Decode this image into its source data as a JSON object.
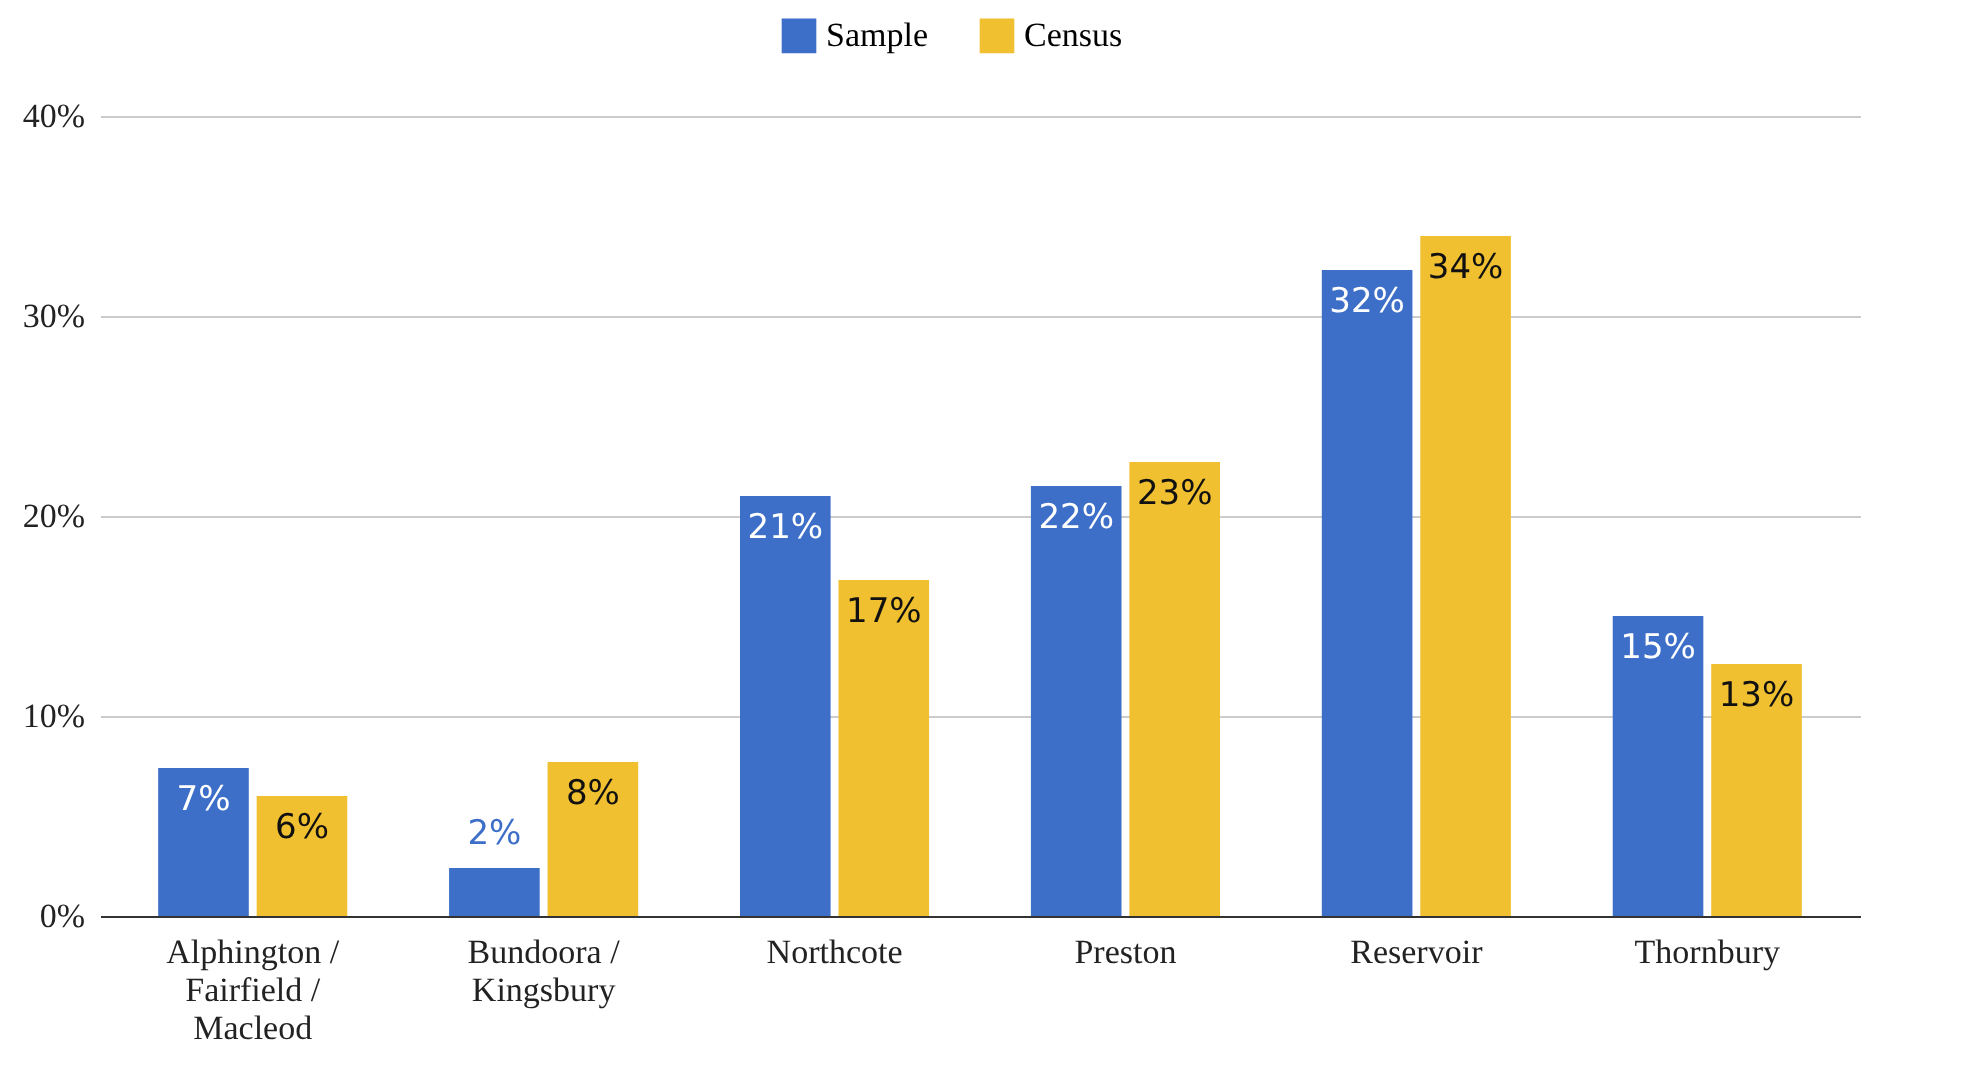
{
  "chart_data": {
    "type": "bar",
    "categories": [
      "Alphington / Fairfield / Macleod",
      "Bundoora / Kingsbury",
      "Northcote",
      "Preston",
      "Reservoir",
      "Thornbury"
    ],
    "series": [
      {
        "name": "Sample",
        "color": "#3d6fc8",
        "values": [
          7.4,
          2.4,
          21,
          21.5,
          32.3,
          15
        ],
        "value_labels": [
          "7%",
          "2%",
          "21%",
          "22%",
          "32%",
          "15%"
        ]
      },
      {
        "name": "Census",
        "color": "#f0c030",
        "values": [
          6,
          7.7,
          16.8,
          22.7,
          34,
          12.6
        ],
        "value_labels": [
          "6%",
          "8%",
          "17%",
          "23%",
          "34%",
          "13%"
        ]
      }
    ],
    "ylim": [
      0,
      40
    ],
    "yticks": [
      {
        "value": 0,
        "label": "0%"
      },
      {
        "value": 10,
        "label": "10%"
      },
      {
        "value": 20,
        "label": "20%"
      },
      {
        "value": 30,
        "label": "30%"
      },
      {
        "value": 40,
        "label": "40%"
      }
    ],
    "grid": "y",
    "legend": "top"
  }
}
